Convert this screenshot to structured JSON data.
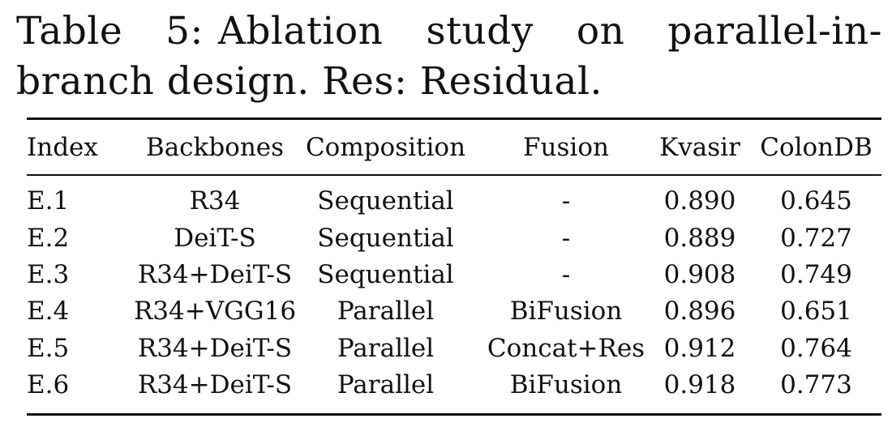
{
  "caption": {
    "label": "Table 5:",
    "text": "Ablation study on parallel-in-branch design. Res: Residual."
  },
  "table": {
    "headers": [
      "Index",
      "Backbones",
      "Composition",
      "Fusion",
      "Kvasir",
      "ColonDB"
    ],
    "rows": [
      [
        "E.1",
        "R34",
        "Sequential",
        "-",
        "0.890",
        "0.645"
      ],
      [
        "E.2",
        "DeiT-S",
        "Sequential",
        "-",
        "0.889",
        "0.727"
      ],
      [
        "E.3",
        "R34+DeiT-S",
        "Sequential",
        "-",
        "0.908",
        "0.749"
      ],
      [
        "E.4",
        "R34+VGG16",
        "Parallel",
        "BiFusion",
        "0.896",
        "0.651"
      ],
      [
        "E.5",
        "R34+DeiT-S",
        "Parallel",
        "Concat+Res",
        "0.912",
        "0.764"
      ],
      [
        "E.6",
        "R34+DeiT-S",
        "Parallel",
        "BiFusion",
        "0.918",
        "0.773"
      ]
    ]
  }
}
